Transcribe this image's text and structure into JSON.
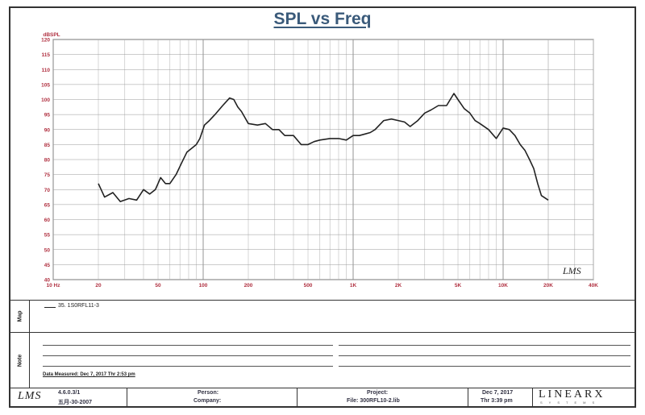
{
  "chart_data": {
    "type": "line",
    "title": "SPL vs Freq",
    "ylabel": "dBSPL",
    "x_scale": "log",
    "xlim": [
      10,
      40000
    ],
    "ylim": [
      40,
      120
    ],
    "grid": true,
    "y_ticks": [
      "40",
      "45",
      "50",
      "55",
      "60",
      "65",
      "70",
      "75",
      "80",
      "85",
      "90",
      "95",
      "100",
      "105",
      "110",
      "115",
      "120"
    ],
    "x_tick_labels": [
      {
        "f": 10,
        "label": "10  Hz"
      },
      {
        "f": 20,
        "label": "20"
      },
      {
        "f": 50,
        "label": "50"
      },
      {
        "f": 100,
        "label": "100"
      },
      {
        "f": 200,
        "label": "200"
      },
      {
        "f": 500,
        "label": "500"
      },
      {
        "f": 1000,
        "label": "1K"
      },
      {
        "f": 2000,
        "label": "2K"
      },
      {
        "f": 5000,
        "label": "5K"
      },
      {
        "f": 10000,
        "label": "10K"
      },
      {
        "f": 20000,
        "label": "20K"
      },
      {
        "f": 40000,
        "label": "40K"
      }
    ],
    "series": [
      {
        "name": "35. 1S0RFL11-3",
        "color": "#222222",
        "x": [
          20,
          22,
          25,
          28,
          32,
          36,
          40,
          44,
          48,
          52,
          56,
          60,
          66,
          72,
          78,
          85,
          90,
          95,
          102,
          110,
          120,
          135,
          150,
          160,
          170,
          180,
          200,
          230,
          260,
          290,
          320,
          350,
          400,
          450,
          500,
          550,
          600,
          700,
          800,
          900,
          1000,
          1100,
          1200,
          1300,
          1400,
          1600,
          1800,
          2000,
          2200,
          2400,
          2700,
          3000,
          3300,
          3700,
          4200,
          4700,
          5000,
          5500,
          6000,
          6500,
          7000,
          8000,
          9000,
          10000,
          11000,
          12000,
          13000,
          14000,
          15000,
          16000,
          17000,
          18000,
          20000
        ],
        "y": [
          72,
          67.5,
          69,
          66,
          67,
          66.5,
          70,
          68.5,
          70,
          74,
          72,
          72,
          75,
          79,
          82.5,
          84,
          85,
          87,
          91.5,
          93,
          95,
          98,
          100.5,
          100,
          97.5,
          96,
          92,
          91.5,
          92,
          90,
          90,
          88,
          88,
          85,
          85,
          86,
          86.5,
          87,
          87,
          86.5,
          88,
          88,
          88.5,
          89,
          90,
          93,
          93.5,
          93,
          92.5,
          91,
          93,
          95.5,
          96.5,
          98,
          98,
          102,
          100,
          97,
          95.5,
          93,
          92,
          90,
          87,
          90.5,
          90,
          88,
          85,
          83,
          80,
          77,
          72,
          68,
          66.5
        ]
      }
    ]
  },
  "legend": {
    "entry": "35. 1S0RFL11-3"
  },
  "side_labels": {
    "map": "Map",
    "note": "Note"
  },
  "note": {
    "measured": "Data Measured: Dec  7, 2017  Thr  2:53 pm"
  },
  "footer": {
    "lms_logo": "LMS",
    "version": "4.6.0.3/1",
    "version_date": "五月-30-2007",
    "person_label": "Person:",
    "company_label": "Company:",
    "project_label": "Project:",
    "file_label": "File: 300RFL10-2.lib",
    "date": "Dec  7, 2017",
    "time": "Thr  3:39 pm",
    "brand": "LINEARX",
    "brand_sub": "SYSTEMS"
  },
  "plot_watermark": "LMS"
}
